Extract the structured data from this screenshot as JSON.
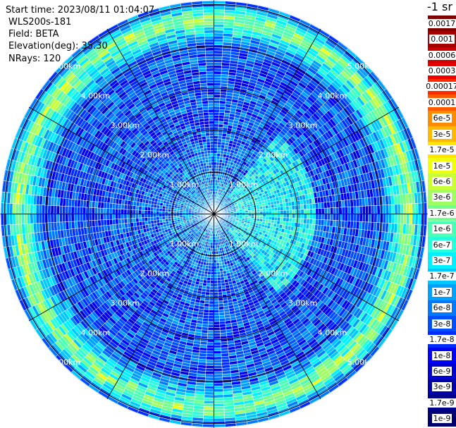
{
  "header": {
    "start_time": "Start time: 2023/08/11 01:04:07",
    "instrument": "WLS200s-181",
    "field": "Field: BETA",
    "elevation": "Elevation(deg): 35.30",
    "nrays": "NRays: 120"
  },
  "colorbar": {
    "unit_title": "-1 sr",
    "entries": [
      {
        "label": "0.0017",
        "color": "#7f0000"
      },
      {
        "label": "0.001",
        "color": "#a50000"
      },
      {
        "label": "0.0006",
        "color": "#cc0000"
      },
      {
        "label": "0.0003",
        "color": "#ee0000"
      },
      {
        "label": "0.00017",
        "color": "#ff2a00"
      },
      {
        "label": "0.0001",
        "color": "#ff5a00"
      },
      {
        "label": "6e-5",
        "color": "#ff8c00"
      },
      {
        "label": "3e-5",
        "color": "#ffb800"
      },
      {
        "label": "1.7e-5",
        "color": "#ffe500"
      },
      {
        "label": "1e-5",
        "color": "#f0ff0f"
      },
      {
        "label": "6e-6",
        "color": "#c8ff37"
      },
      {
        "label": "3e-6",
        "color": "#9dff62"
      },
      {
        "label": "1.7e-6",
        "color": "#73ff8c"
      },
      {
        "label": "1e-6",
        "color": "#4bffb4"
      },
      {
        "label": "6e-7",
        "color": "#25ffda"
      },
      {
        "label": "3e-7",
        "color": "#00f0ff"
      },
      {
        "label": "1.7e-7",
        "color": "#00c8ff"
      },
      {
        "label": "1e-7",
        "color": "#00a0ff"
      },
      {
        "label": "6e-8",
        "color": "#0078ff"
      },
      {
        "label": "3e-8",
        "color": "#0050ff"
      },
      {
        "label": "1.7e-8",
        "color": "#002cff"
      },
      {
        "label": "1e-8",
        "color": "#0000f8"
      },
      {
        "label": "6e-9",
        "color": "#0000d0"
      },
      {
        "label": "3e-9",
        "color": "#0000a8"
      },
      {
        "label": "1.7e-9",
        "color": "#000088"
      },
      {
        "label": "1e-9",
        "color": "#000070"
      }
    ]
  },
  "chart_data": {
    "type": "heatmap",
    "projection": "polar PPI",
    "field": "BETA",
    "nrays": 120,
    "range_rings": [
      {
        "range_km": 1.0,
        "label": "1.00km"
      },
      {
        "range_km": 2.0,
        "label": "2.00km"
      },
      {
        "range_km": 3.0,
        "label": "3.00km"
      },
      {
        "range_km": 4.0,
        "label": "4.00km"
      },
      {
        "range_km": 5.0,
        "label": "5.00km"
      }
    ],
    "max_range_km": 5.1,
    "azimuth_lines_deg": [
      0,
      30,
      60,
      90,
      120,
      150,
      180,
      210,
      240,
      270,
      300,
      330
    ],
    "profile": [
      {
        "range_km": 0.2,
        "value": 1e-07
      },
      {
        "range_km": 1.0,
        "value": 6e-08
      },
      {
        "range_km": 2.0,
        "value": 3e-08
      },
      {
        "range_km": 3.0,
        "value": 3e-08
      },
      {
        "range_km": 4.0,
        "value": 3e-08
      },
      {
        "range_km": 4.7,
        "value": 3e-06
      },
      {
        "range_km": 5.0,
        "value": 6e-08
      }
    ],
    "enhanced_sector": {
      "az_from_deg": 40,
      "az_to_deg": 140,
      "range_to_km": 2.4,
      "value": 3e-07
    },
    "color_scale": "log",
    "value_range": [
      1e-09,
      0.0017
    ]
  }
}
